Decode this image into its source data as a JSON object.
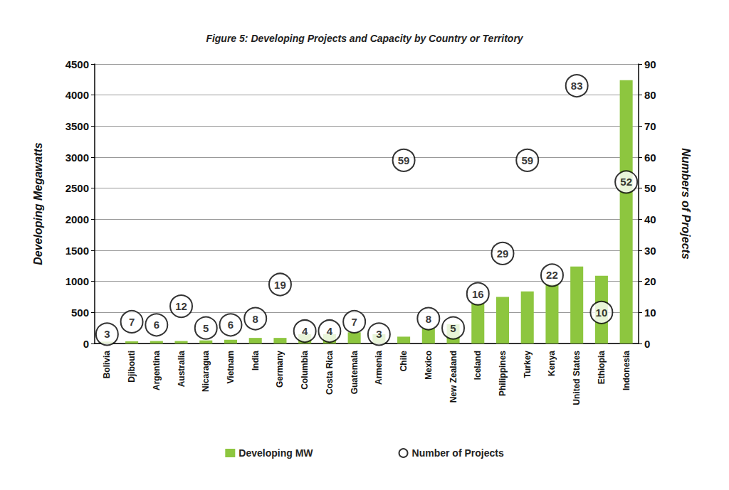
{
  "chart_data": {
    "type": "bar",
    "title": "Figure 5: Developing Projects and Capacity by Country or Territory",
    "y_label": "Developing Megawatts",
    "y2_label": "Numbers of Projects",
    "categories": [
      "Bolivia",
      "Djibouti",
      "Argentina",
      "Australia",
      "Nicaragua",
      "Vietnam",
      "India",
      "Germany",
      "Columbia",
      "Costa Rica",
      "Guatemala",
      "Armenia",
      "Chile",
      "Mexico",
      "New Zealand",
      "Iceland",
      "Philippines",
      "Turkey",
      "Kenya",
      "United States",
      "Ethiopia",
      "Indonesia"
    ],
    "series": [
      {
        "name": "Developing MW",
        "type": "bar",
        "color": "#8dc63f",
        "values": [
          30,
          35,
          40,
          40,
          50,
          60,
          90,
          90,
          150,
          150,
          180,
          150,
          110,
          240,
          310,
          640,
          750,
          840,
          960,
          1240,
          1090,
          4240
        ]
      },
      {
        "name": "Number of Projects",
        "type": "scatter",
        "axis": "y2",
        "color": "#000000",
        "marker": "circle",
        "data_labels": true,
        "values": [
          3,
          7,
          6,
          12,
          5,
          6,
          8,
          19,
          4,
          4,
          7,
          3,
          59,
          8,
          5,
          16,
          29,
          59,
          22,
          83,
          10,
          52
        ]
      }
    ],
    "ylim": [
      0,
      4500
    ],
    "yticks": [
      0,
      500,
      1000,
      1500,
      2000,
      2500,
      3000,
      3500,
      4000,
      4500
    ],
    "y2lim": [
      0,
      90
    ],
    "y2ticks": [
      0,
      10,
      20,
      30,
      40,
      50,
      60,
      70,
      80,
      90
    ],
    "grid": true,
    "legend": "bottom"
  }
}
